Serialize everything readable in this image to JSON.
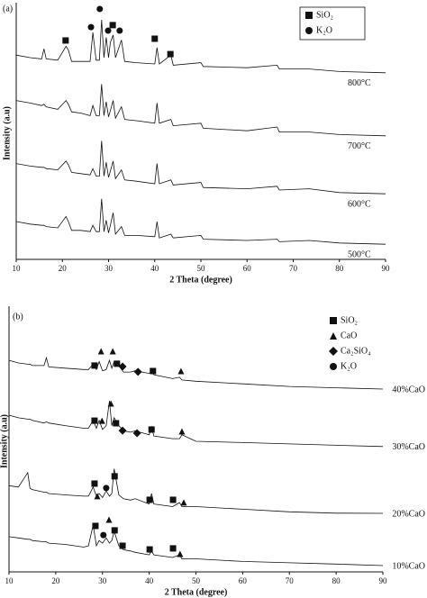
{
  "chart_data": [
    {
      "type": "line",
      "label": "(a)",
      "x_label": "2 Theta (degree)",
      "y_label": "Intensity (a.u)",
      "xlim": [
        10,
        90
      ],
      "xticks": [
        10,
        20,
        30,
        40,
        50,
        60,
        70,
        80,
        90
      ],
      "ylim": [
        0,
        100
      ],
      "legend": "upper right",
      "legend_frame": true,
      "x": [
        10,
        13,
        15.5,
        16,
        16.5,
        19,
        20.8,
        21.3,
        22,
        24,
        26,
        26.6,
        27.3,
        28,
        28.5,
        29,
        29.5,
        30,
        30.4,
        31,
        31.5,
        32.8,
        33.5,
        36,
        40,
        40.5,
        41,
        43.5,
        44,
        50,
        50.5,
        60,
        66.5,
        67,
        73.5,
        80,
        90
      ],
      "series": [
        {
          "name": "800°C",
          "color": "#111111",
          "values": [
            81,
            80,
            79.5,
            83.5,
            79.5,
            79,
            84.5,
            83,
            78.5,
            78.5,
            78.5,
            90,
            79,
            79,
            95,
            80,
            88,
            80,
            86,
            89,
            80,
            87,
            78.5,
            78,
            77.5,
            84,
            77.5,
            81,
            77,
            78,
            76.5,
            76,
            77,
            75.5,
            75.5,
            74.5,
            74
          ]
        },
        {
          "name": "700°C",
          "color": "#111111",
          "values": [
            63,
            62,
            61,
            61.5,
            60.5,
            59.5,
            63,
            61.5,
            58.5,
            58,
            57,
            61,
            57,
            57,
            69.5,
            57,
            62.5,
            56.5,
            59,
            63,
            56,
            60.5,
            55.5,
            55,
            54,
            62,
            54,
            55.5,
            53,
            54,
            52,
            51,
            52.5,
            50.5,
            50.5,
            49.5,
            49
          ]
        },
        {
          "name": "600°C",
          "color": "#111111",
          "values": [
            38,
            37,
            36.5,
            36.5,
            36,
            35.5,
            39,
            37.5,
            34.5,
            34,
            33.5,
            36,
            33,
            33,
            47,
            33,
            38.5,
            32.5,
            35,
            39,
            32,
            35.5,
            31.5,
            31,
            30,
            38,
            30,
            31.5,
            29.5,
            30.5,
            28.5,
            28,
            29,
            27.5,
            28,
            26.5,
            26
          ]
        },
        {
          "name": "500°C",
          "color": "#111111",
          "values": [
            15,
            14,
            13.5,
            13.5,
            13,
            12.5,
            17,
            15,
            11.5,
            11.5,
            11,
            13.5,
            11,
            11,
            24,
            11,
            15.5,
            10.5,
            13.5,
            18.5,
            10,
            13,
            9.5,
            9.5,
            9,
            15,
            8.5,
            10,
            8.5,
            9.5,
            8,
            7.5,
            8,
            7,
            7.5,
            6.5,
            6
          ]
        }
      ],
      "phases": [
        {
          "name": "SiO₂",
          "shape": "square",
          "color": "#111111",
          "x": [
            20.7,
            30.9,
            40,
            43.4
          ],
          "y": [
            86.8,
            92.9,
            87.5,
            81.4
          ]
        },
        {
          "name": "K₂O",
          "shape": "circle",
          "color": "#111111",
          "x": [
            26.2,
            28.1,
            29.9,
            32.4
          ],
          "y": [
            92.1,
            99.3,
            90.7,
            90.7
          ]
        }
      ]
    },
    {
      "type": "line",
      "label": "(b)",
      "x_label": "2 Theta (degree)",
      "y_label": "Intensity (a.u)",
      "xlim": [
        10,
        90
      ],
      "xticks": [
        10,
        20,
        30,
        40,
        50,
        60,
        70,
        80,
        90
      ],
      "ylim": [
        0,
        100
      ],
      "legend": "upper right",
      "legend_frame": false,
      "x": [
        10,
        12,
        14,
        14.5,
        15,
        17.5,
        18,
        18.5,
        22,
        26,
        27,
        28,
        28.7,
        29.3,
        30,
        30.8,
        31.5,
        32,
        32.5,
        33.5,
        34.5,
        36,
        37,
        40,
        40.5,
        41,
        45,
        46.5,
        47,
        50,
        60,
        70,
        80,
        90
      ],
      "series": [
        {
          "name": "40%CaO",
          "color": "#111111",
          "values": [
            81,
            80,
            79.5,
            79.5,
            79,
            79,
            82,
            78.5,
            78,
            77.5,
            77.5,
            79.5,
            77.5,
            80.5,
            77,
            77.5,
            81,
            78,
            80.5,
            79,
            76.5,
            76.5,
            77,
            76,
            77,
            75.5,
            74,
            74.5,
            73.5,
            73,
            72,
            71,
            70.5,
            70
          ]
        },
        {
          "name": "30%CaO",
          "color": "#111111",
          "values": [
            60,
            59,
            58.5,
            58.5,
            58,
            57,
            57.5,
            57,
            56,
            55,
            55,
            58,
            55,
            58,
            54.5,
            56,
            65.5,
            56,
            59,
            56,
            54,
            53.5,
            54,
            52.5,
            55.5,
            52,
            51,
            51,
            52.5,
            50,
            49.5,
            49,
            48.5,
            48
          ]
        },
        {
          "name": "20%CaO",
          "color": "#111111",
          "values": [
            33,
            32.5,
            38,
            32,
            31.5,
            30.5,
            30.5,
            30,
            29.5,
            29,
            29,
            32.5,
            29,
            30,
            28.5,
            31,
            29,
            30,
            39.5,
            29.5,
            28,
            27.5,
            28,
            26,
            30,
            26,
            25,
            26.5,
            25,
            25,
            24,
            23,
            22.5,
            22.4
          ]
        },
        {
          "name": "10%CaO",
          "color": "#111111",
          "values": [
            13.5,
            13,
            12.5,
            12.5,
            12,
            11.5,
            11.5,
            11,
            10.5,
            9.5,
            10,
            18,
            10,
            12,
            11,
            13,
            11,
            12,
            15.5,
            10,
            8.5,
            8,
            7.5,
            6.5,
            8,
            6.5,
            5.5,
            6.5,
            5,
            5,
            4,
            3.5,
            3,
            2.4
          ]
        }
      ],
      "phases": [
        {
          "name": "SiO₂",
          "shape": "square",
          "color": "#111111",
          "x": [
            28.3,
            33.1,
            40.8,
            28.3,
            32.9,
            40.5,
            28.3,
            32.6,
            40.1,
            45.1,
            28.5,
            32.6,
            34.3,
            40.1,
            45.1
          ],
          "y": [
            79,
            79.7,
            76.9,
            57.9,
            56.9,
            54.5,
            33.8,
            36.6,
            27.6,
            27.6,
            17.6,
            15.9,
            10,
            8.6,
            9
          ]
        },
        {
          "name": "CaO",
          "shape": "triangle",
          "color": "#111111",
          "x": [
            29.7,
            32.2,
            46.8,
            29.9,
            31.8,
            47,
            28.9,
            47.4,
            31.4,
            46.6
          ],
          "y": [
            84.5,
            84.5,
            76.9,
            57.9,
            64.5,
            53.8,
            29,
            26.6,
            20,
            6.9
          ]
        },
        {
          "name": "Ca₂SiO₄",
          "shape": "diamond",
          "color": "#111111",
          "x": [
            34.3,
            37.6,
            34.3,
            37.4
          ],
          "y": [
            78.6,
            76.6,
            54.1,
            53.1
          ]
        },
        {
          "name": "K₂O",
          "shape": "circle",
          "color": "#111111",
          "x": [
            30.8,
            30.2
          ],
          "y": [
            32.1,
            14.1
          ]
        }
      ]
    }
  ]
}
